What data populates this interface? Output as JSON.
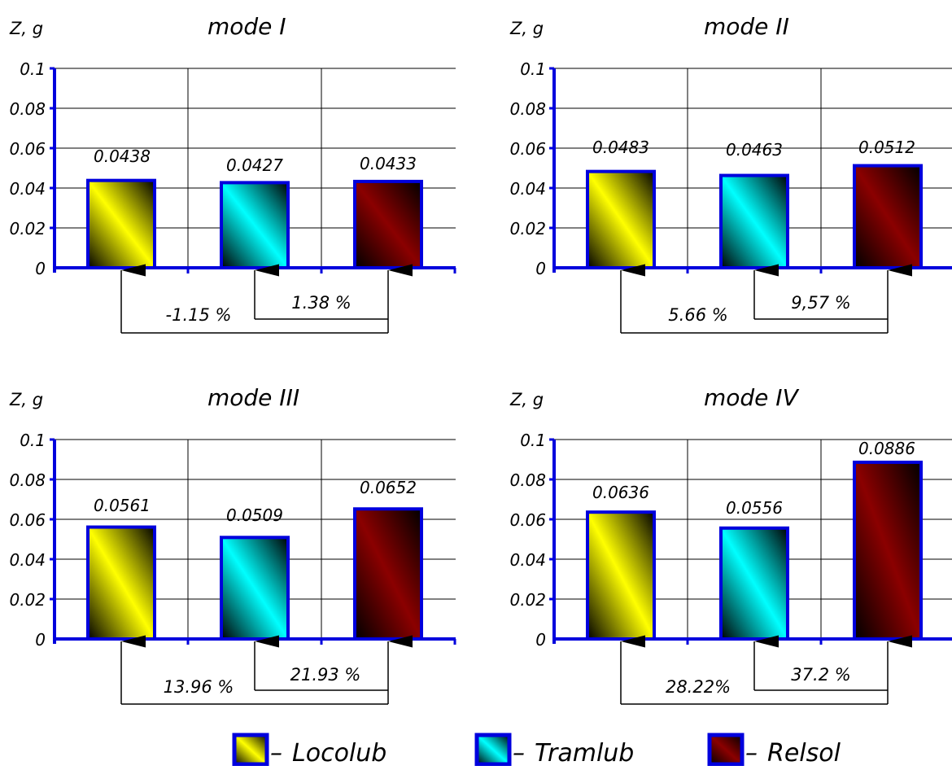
{
  "chart_data": [
    {
      "type": "bar",
      "title": "mode I",
      "ylabel": "Z, g",
      "ylim": [
        0,
        0.1
      ],
      "yticks": [
        "0",
        "0.02",
        "0.04",
        "0.06",
        "0.08",
        "0.1"
      ],
      "categories": [
        "Locolub",
        "Tramlub",
        "Relsol"
      ],
      "values": [
        0.0438,
        0.0427,
        0.0433
      ],
      "value_labels": [
        "0.0438",
        "0.0427",
        "0.0433"
      ],
      "annotations": [
        "-1.15 %",
        "1.38 %"
      ]
    },
    {
      "type": "bar",
      "title": "mode II",
      "ylabel": "Z, g",
      "ylim": [
        0,
        0.1
      ],
      "yticks": [
        "0",
        "0.02",
        "0.04",
        "0.06",
        "0.08",
        "0.1"
      ],
      "categories": [
        "Locolub",
        "Tramlub",
        "Relsol"
      ],
      "values": [
        0.0483,
        0.0463,
        0.0512
      ],
      "value_labels": [
        "0.0483",
        "0.0463",
        "0.0512"
      ],
      "annotations": [
        "5.66 %",
        "9,57 %"
      ]
    },
    {
      "type": "bar",
      "title": "mode III",
      "ylabel": "Z, g",
      "ylim": [
        0,
        0.1
      ],
      "yticks": [
        "0",
        "0.02",
        "0.04",
        "0.06",
        "0.08",
        "0.1"
      ],
      "categories": [
        "Locolub",
        "Tramlub",
        "Relsol"
      ],
      "values": [
        0.0561,
        0.0509,
        0.0652
      ],
      "value_labels": [
        "0.0561",
        "0.0509",
        "0.0652"
      ],
      "annotations": [
        "13.96 %",
        "21.93 %"
      ]
    },
    {
      "type": "bar",
      "title": "mode IV",
      "ylabel": "Z, g",
      "ylim": [
        0,
        0.1
      ],
      "yticks": [
        "0",
        "0.02",
        "0.04",
        "0.06",
        "0.08",
        "0.1"
      ],
      "categories": [
        "Locolub",
        "Tramlub",
        "Relsol"
      ],
      "values": [
        0.0636,
        0.0556,
        0.0886
      ],
      "value_labels": [
        "0.0636",
        "0.0556",
        "0.0886"
      ],
      "annotations": [
        "28.22%",
        "37.2 %"
      ]
    }
  ],
  "legend": [
    {
      "dash": "–",
      "label": "Locolub",
      "colors": [
        "#000000",
        "#ffff00"
      ]
    },
    {
      "dash": "–",
      "label": "Tramlub",
      "colors": [
        "#000000",
        "#00ffff"
      ]
    },
    {
      "dash": "–",
      "label": "Relsol",
      "colors": [
        "#000000",
        "#8b0000"
      ]
    }
  ],
  "colors": {
    "axis": "#0000dd",
    "bar_border": "#0000dd",
    "grid": "#000000"
  }
}
